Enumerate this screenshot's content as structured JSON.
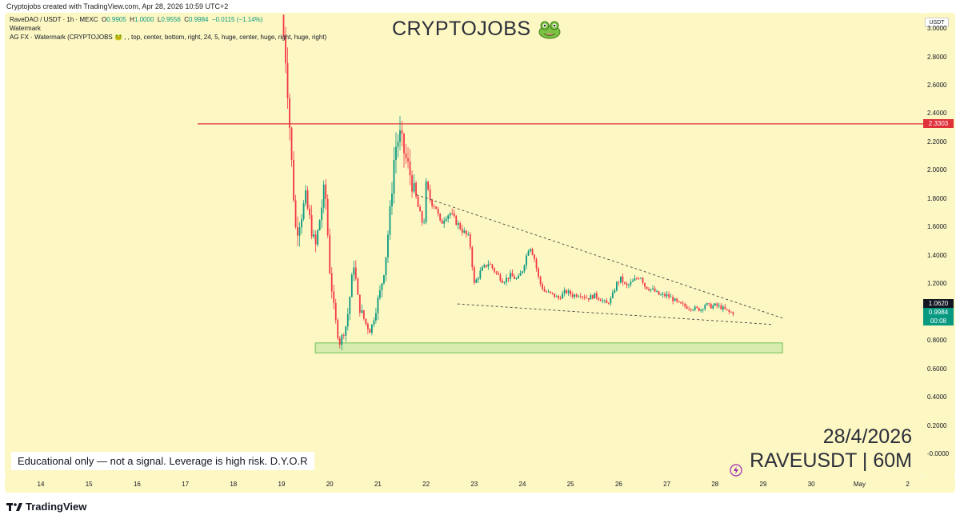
{
  "attribution": "Cryptojobs created with TradingView.com, Apr 28, 2026 10:59 UTC+2",
  "legend": {
    "symbol": "RaveDAO / USDT · 1h · MEXC",
    "open_label": "O",
    "open": "0.9905",
    "high_label": "H",
    "high": "1.0000",
    "low_label": "L",
    "low": "0.9556",
    "close_label": "C",
    "close": "0.9984",
    "change": "−0.0115 (−1.14%)",
    "indicator1": "Watermark",
    "indicator2": "AG FX · Watermark (CRYPTOJOBS 🐸 , , top, center, bottom, right, 24, 5, huge, center, huge, right, huge, right)"
  },
  "watermark": {
    "text": "CRYPTOJOBS",
    "icon": "frog-icon"
  },
  "disclaimer": "Educational only — not a signal. Leverage is high risk. D.Y.O.R",
  "date_label": "28/4/2026",
  "symbol_label": "RAVEUSDT | 60M",
  "price_axis": {
    "currency": "USDT",
    "ticks": [
      "3.0000",
      "2.8000",
      "2.6000",
      "2.4000",
      "2.2000",
      "2.0000",
      "1.8000",
      "1.6000",
      "1.4000",
      "1.2000",
      "0.8000",
      "0.6000",
      "0.4000",
      "0.2000",
      "-0.0000"
    ],
    "tick_values": [
      3.0,
      2.8,
      2.6,
      2.4,
      2.2,
      2.0,
      1.8,
      1.6,
      1.4,
      1.2,
      0.8,
      0.6,
      0.4,
      0.2,
      0.0
    ],
    "resistance_label": "2.3303",
    "high_label": "1.0620",
    "last_label": "0.9984",
    "countdown": "00:08"
  },
  "time_axis": {
    "ticks": [
      "14",
      "15",
      "16",
      "17",
      "18",
      "19",
      "20",
      "21",
      "22",
      "23",
      "24",
      "25",
      "26",
      "27",
      "28",
      "29",
      "30",
      "May",
      "2"
    ]
  },
  "colors": {
    "background": "#fdf7c3",
    "up": "#089981",
    "down": "#f23645",
    "resistance": "#e0303a",
    "zone_fill": "#c9e8a6",
    "zone_border": "#6fbf5a",
    "trendline": "#444444"
  },
  "chart_data": {
    "type": "candlestick",
    "symbol": "RAVEUSDT",
    "interval": "1h",
    "x_axis": "date (April 2026)",
    "ylim": [
      -0.02,
      3.1
    ],
    "current_ohlc": {
      "open": 0.9905,
      "high": 1.0,
      "low": 0.9556,
      "close": 0.9984
    },
    "resistance_level": 2.3303,
    "recent_high": 1.062,
    "support_zone": {
      "from_day": 19.7,
      "to_day": 29.4,
      "low": 0.715,
      "high": 0.785
    },
    "upper_trendline": {
      "start": [
        21.8,
        1.83
      ],
      "end": [
        29.4,
        0.96
      ]
    },
    "lower_trendline": {
      "start": [
        22.65,
        1.06
      ],
      "end": [
        29.2,
        0.915
      ]
    },
    "price_path_anchors": [
      [
        19.0,
        3.1
      ],
      [
        19.1,
        2.75
      ],
      [
        19.2,
        2.1
      ],
      [
        19.3,
        1.55
      ],
      [
        19.5,
        1.8
      ],
      [
        19.7,
        1.45
      ],
      [
        19.9,
        1.9
      ],
      [
        20.0,
        1.3
      ],
      [
        20.1,
        0.98
      ],
      [
        20.2,
        0.78
      ],
      [
        20.35,
        0.92
      ],
      [
        20.5,
        1.35
      ],
      [
        20.6,
        1.05
      ],
      [
        20.75,
        0.92
      ],
      [
        20.85,
        0.87
      ],
      [
        20.95,
        1.02
      ],
      [
        21.05,
        1.15
      ],
      [
        21.15,
        1.35
      ],
      [
        21.25,
        1.7
      ],
      [
        21.35,
        2.15
      ],
      [
        21.45,
        2.25
      ],
      [
        21.55,
        2.12
      ],
      [
        21.65,
        2.0
      ],
      [
        21.75,
        1.85
      ],
      [
        21.85,
        1.72
      ],
      [
        21.95,
        1.6
      ],
      [
        22.0,
        1.9
      ],
      [
        22.1,
        1.78
      ],
      [
        22.2,
        1.75
      ],
      [
        22.3,
        1.62
      ],
      [
        22.4,
        1.68
      ],
      [
        22.5,
        1.7
      ],
      [
        22.6,
        1.65
      ],
      [
        22.75,
        1.58
      ],
      [
        22.9,
        1.52
      ],
      [
        23.0,
        1.2
      ],
      [
        23.15,
        1.3
      ],
      [
        23.3,
        1.35
      ],
      [
        23.45,
        1.28
      ],
      [
        23.6,
        1.22
      ],
      [
        23.75,
        1.26
      ],
      [
        23.9,
        1.23
      ],
      [
        24.0,
        1.3
      ],
      [
        24.15,
        1.48
      ],
      [
        24.25,
        1.38
      ],
      [
        24.35,
        1.22
      ],
      [
        24.45,
        1.15
      ],
      [
        24.6,
        1.13
      ],
      [
        24.75,
        1.1
      ],
      [
        24.9,
        1.15
      ],
      [
        25.05,
        1.12
      ],
      [
        25.2,
        1.13
      ],
      [
        25.35,
        1.1
      ],
      [
        25.5,
        1.12
      ],
      [
        25.6,
        1.1
      ],
      [
        25.75,
        1.06
      ],
      [
        25.85,
        1.1
      ],
      [
        25.95,
        1.2
      ],
      [
        26.05,
        1.24
      ],
      [
        26.15,
        1.18
      ],
      [
        26.3,
        1.22
      ],
      [
        26.45,
        1.26
      ],
      [
        26.55,
        1.18
      ],
      [
        26.7,
        1.16
      ],
      [
        26.85,
        1.12
      ],
      [
        27.0,
        1.12
      ],
      [
        27.1,
        1.1
      ],
      [
        27.25,
        1.06
      ],
      [
        27.4,
        1.04
      ],
      [
        27.55,
        1.03
      ],
      [
        27.7,
        1.02
      ],
      [
        27.8,
        1.06
      ],
      [
        27.9,
        1.04
      ],
      [
        28.0,
        1.05
      ],
      [
        28.1,
        1.04
      ],
      [
        28.2,
        1.02
      ],
      [
        28.3,
        1.0
      ],
      [
        28.4,
        0.998
      ]
    ]
  }
}
